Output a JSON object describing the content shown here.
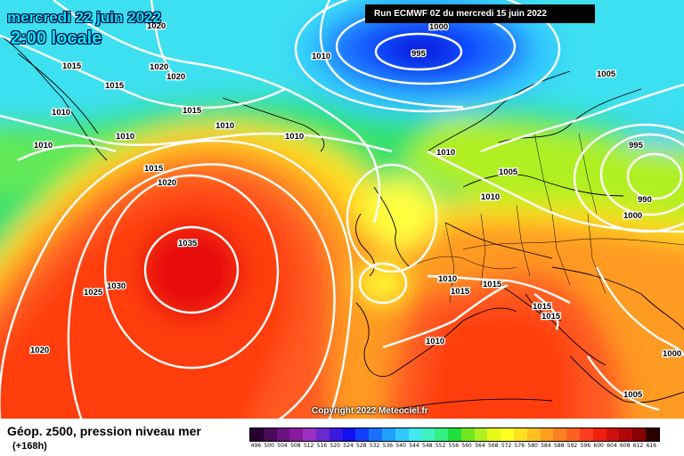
{
  "header": {
    "date": "mercredi 22 juin 2022",
    "time": "2:00 locale",
    "run": "Run ECMWF 0Z du mercredi 15 juin 2022"
  },
  "copyright": "Copyright 2022 Meteociel.fr",
  "legend": {
    "title": "Géop. z500, pression niveau mer",
    "subtitle": "(+168h)",
    "scale": [
      {
        "label": "496",
        "color": "#2a0030"
      },
      {
        "label": "500",
        "color": "#4a0a5a"
      },
      {
        "label": "504",
        "color": "#6a1280"
      },
      {
        "label": "508",
        "color": "#8a1aa0"
      },
      {
        "label": "512",
        "color": "#9a30c0"
      },
      {
        "label": "516",
        "color": "#6a2ad0"
      },
      {
        "label": "520",
        "color": "#3a1ae0"
      },
      {
        "label": "524",
        "color": "#1010f0"
      },
      {
        "label": "528",
        "color": "#1040ff"
      },
      {
        "label": "532",
        "color": "#1a70ff"
      },
      {
        "label": "536",
        "color": "#20a0ff"
      },
      {
        "label": "540",
        "color": "#30c8ff"
      },
      {
        "label": "544",
        "color": "#40e8f0"
      },
      {
        "label": "548",
        "color": "#40f0c0"
      },
      {
        "label": "552",
        "color": "#30f080"
      },
      {
        "label": "556",
        "color": "#20e040"
      },
      {
        "label": "560",
        "color": "#70e820"
      },
      {
        "label": "564",
        "color": "#b0f020"
      },
      {
        "label": "568",
        "color": "#e8f818"
      },
      {
        "label": "572",
        "color": "#ffff20"
      },
      {
        "label": "576",
        "color": "#ffe020"
      },
      {
        "label": "580",
        "color": "#ffc020"
      },
      {
        "label": "584",
        "color": "#ffa020"
      },
      {
        "label": "588",
        "color": "#ff8020"
      },
      {
        "label": "592",
        "color": "#ff6020"
      },
      {
        "label": "596",
        "color": "#ff3c20"
      },
      {
        "label": "600",
        "color": "#f02010"
      },
      {
        "label": "604",
        "color": "#d01010"
      },
      {
        "label": "608",
        "color": "#b00808"
      },
      {
        "label": "612",
        "color": "#880000"
      },
      {
        "label": "616",
        "color": "#300000"
      }
    ]
  },
  "isobar_labels": [
    "1020",
    "1015",
    "1020",
    "1020",
    "1015",
    "1010",
    "1010",
    "1010",
    "1015",
    "1010",
    "1010",
    "1015",
    "1020",
    "1035",
    "1030",
    "1025",
    "1020",
    "1000",
    "995",
    "1010",
    "1005",
    "1010",
    "1005",
    "1010",
    "995",
    "990",
    "1000",
    "1010",
    "1015",
    "1015",
    "1015",
    "1015",
    "1010",
    "1000",
    "1005"
  ],
  "colors": {
    "deep_low": "#1010d8",
    "low": "#2a8cff",
    "cyan": "#3ee0f0",
    "green": "#2ee070",
    "yellow": "#fff830",
    "orange": "#ffa020",
    "red": "#ff3c10",
    "core": "#e80808"
  }
}
